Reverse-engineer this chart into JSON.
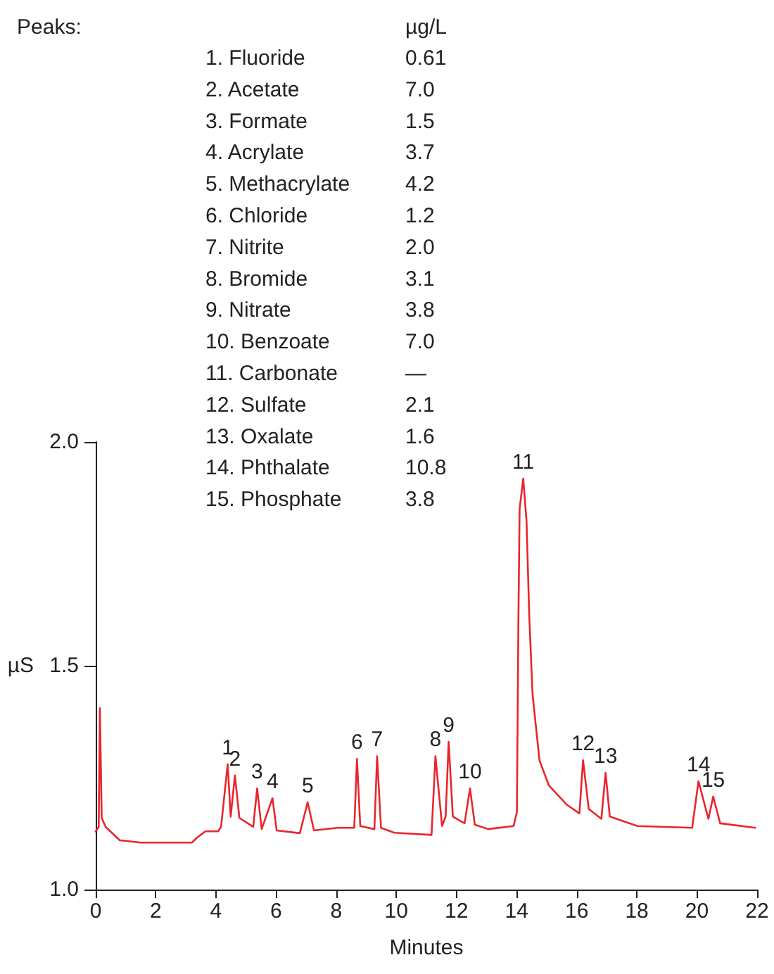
{
  "chart_data": {
    "type": "line",
    "xlabel": "Minutes",
    "ylabel": "µS",
    "xlim": [
      0,
      22
    ],
    "xticks": [
      0,
      2,
      4,
      6,
      8,
      10,
      12,
      14,
      16,
      18,
      20,
      22
    ],
    "ylim": [
      1.0,
      2.0
    ],
    "yticks": [
      {
        "value": 1.0,
        "label": "1.0"
      },
      {
        "value": 1.5,
        "label": "1.5"
      },
      {
        "value": 2.0,
        "label": "2.0"
      }
    ],
    "marker": "none",
    "line_style": "solid",
    "series": [
      {
        "color": "#e8262d",
        "x": [
          0,
          0.1,
          0.14,
          0.2,
          0.33,
          0.8,
          1.5,
          2.5,
          3.2,
          3.37,
          3.65,
          4.07,
          4.17,
          4.39,
          4.49,
          4.63,
          4.78,
          5.24,
          5.37,
          5.52,
          5.88,
          6.02,
          6.79,
          7.05,
          7.26,
          8.05,
          8.6,
          8.69,
          8.8,
          9.27,
          9.36,
          9.49,
          9.93,
          11.17,
          11.3,
          11.52,
          11.64,
          11.74,
          11.88,
          12.27,
          12.45,
          12.61,
          13.05,
          13.9,
          14.01,
          14.06,
          14.1,
          14.22,
          14.33,
          14.42,
          14.53,
          14.76,
          15.07,
          15.68,
          16.09,
          16.21,
          16.4,
          16.82,
          16.96,
          17.1,
          18.02,
          19.84,
          20.05,
          20.38,
          20.54,
          20.77,
          21.94
        ],
        "values": [
          1.13,
          1.14,
          1.405,
          1.16,
          1.14,
          1.11,
          1.105,
          1.105,
          1.105,
          1.116,
          1.13,
          1.13,
          1.14,
          1.28,
          1.163,
          1.255,
          1.16,
          1.14,
          1.226,
          1.135,
          1.204,
          1.132,
          1.126,
          1.195,
          1.132,
          1.138,
          1.138,
          1.292,
          1.142,
          1.135,
          1.298,
          1.138,
          1.127,
          1.122,
          1.298,
          1.142,
          1.163,
          1.33,
          1.163,
          1.148,
          1.226,
          1.145,
          1.135,
          1.142,
          1.173,
          1.6,
          1.85,
          1.918,
          1.824,
          1.613,
          1.437,
          1.289,
          1.233,
          1.189,
          1.17,
          1.289,
          1.18,
          1.158,
          1.261,
          1.163,
          1.142,
          1.138,
          1.242,
          1.158,
          1.208,
          1.148,
          1.138
        ]
      }
    ],
    "annotations": [
      "Peaks:",
      "µg/L",
      "1. Fluoride",
      "0.61",
      "2. Acetate",
      "7.0",
      "3. Formate",
      "1.5",
      "4. Acrylate",
      "3.7",
      "5. Methacrylate",
      "4.2",
      "6. Chloride",
      "1.2",
      "7. Nitrite",
      "2.0",
      "8. Bromide",
      "3.1",
      "9. Nitrate",
      "3.8",
      "10. Benzoate",
      "7.0",
      "11. Carbonate",
      "—",
      "12. Sulfate",
      "2.1",
      "13. Oxalate",
      "1.6",
      "14. Phthalate",
      "10.8",
      "15. Phosphate",
      "3.8",
      {
        "text": "1",
        "x": 4.39,
        "y": 1.28
      },
      {
        "text": "2",
        "x": 4.63,
        "y": 1.255
      },
      {
        "text": "3",
        "x": 5.37,
        "y": 1.226
      },
      {
        "text": "4",
        "x": 5.88,
        "y": 1.204
      },
      {
        "text": "5",
        "x": 7.05,
        "y": 1.195
      },
      {
        "text": "6",
        "x": 8.69,
        "y": 1.292
      },
      {
        "text": "7",
        "x": 9.36,
        "y": 1.298
      },
      {
        "text": "8",
        "x": 11.3,
        "y": 1.298
      },
      {
        "text": "9",
        "x": 11.74,
        "y": 1.33
      },
      {
        "text": "10",
        "x": 12.45,
        "y": 1.226
      },
      {
        "text": "11",
        "x": 14.22,
        "y": 1.918
      },
      {
        "text": "12",
        "x": 16.21,
        "y": 1.289
      },
      {
        "text": "13",
        "x": 16.96,
        "y": 1.261
      },
      {
        "text": "14",
        "x": 20.05,
        "y": 1.242
      },
      {
        "text": "15",
        "x": 20.54,
        "y": 1.208
      }
    ]
  }
}
